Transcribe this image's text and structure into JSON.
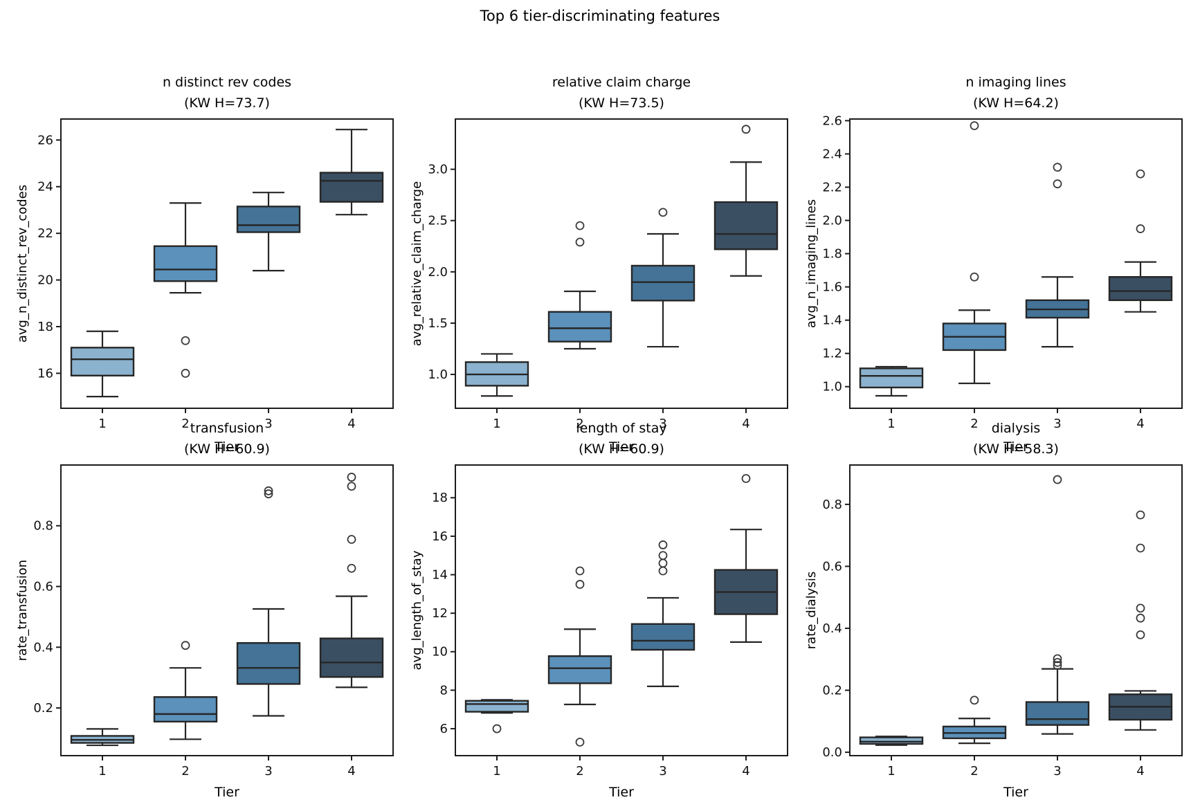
{
  "suptitle": "Top 6 tier-discriminating features",
  "palette": {
    "tiers": [
      "#8bb2ce",
      "#5b91bb",
      "#447397",
      "#3b4f63"
    ],
    "line": "#262626",
    "axis": "#1c1c1c",
    "flier": "#3a3a3a",
    "background": "#ffffff"
  },
  "chart_data": [
    {
      "type": "box",
      "title": "n distinct rev codes",
      "kw_label": "(KW H=73.7)",
      "xlabel": "Tier",
      "ylabel": "avg_n_distinct_rev_codes",
      "categories": [
        "1",
        "2",
        "3",
        "4"
      ],
      "ylim": [
        14.5,
        26.9
      ],
      "yticks": [
        {
          "v": 16,
          "label": "16"
        },
        {
          "v": 18,
          "label": "18"
        },
        {
          "v": 20,
          "label": "20"
        },
        {
          "v": 22,
          "label": "22"
        },
        {
          "v": 24,
          "label": "24"
        },
        {
          "v": 26,
          "label": "26"
        }
      ],
      "boxes": [
        {
          "tier": "1",
          "whislo": 15.0,
          "q1": 15.9,
          "med": 16.6,
          "q3": 17.1,
          "whishi": 17.8,
          "fliers": []
        },
        {
          "tier": "2",
          "whislo": 19.45,
          "q1": 19.95,
          "med": 20.45,
          "q3": 21.45,
          "whishi": 23.3,
          "fliers": [
            17.4,
            16.0
          ]
        },
        {
          "tier": "3",
          "whislo": 20.4,
          "q1": 22.05,
          "med": 22.35,
          "q3": 23.15,
          "whishi": 23.75,
          "fliers": []
        },
        {
          "tier": "4",
          "whislo": 22.8,
          "q1": 23.35,
          "med": 24.25,
          "q3": 24.6,
          "whishi": 26.45,
          "fliers": []
        }
      ]
    },
    {
      "type": "box",
      "title": "relative claim charge",
      "kw_label": "(KW H=73.5)",
      "xlabel": "Tier",
      "ylabel": "avg_relative_claim_charge",
      "categories": [
        "1",
        "2",
        "3",
        "4"
      ],
      "ylim": [
        0.67,
        3.49
      ],
      "yticks": [
        {
          "v": 1.0,
          "label": "1.0"
        },
        {
          "v": 1.5,
          "label": "1.5"
        },
        {
          "v": 2.0,
          "label": "2.0"
        },
        {
          "v": 2.5,
          "label": "2.5"
        },
        {
          "v": 3.0,
          "label": "3.0"
        }
      ],
      "boxes": [
        {
          "tier": "1",
          "whislo": 0.79,
          "q1": 0.89,
          "med": 1.0,
          "q3": 1.12,
          "whishi": 1.2,
          "fliers": []
        },
        {
          "tier": "2",
          "whislo": 1.25,
          "q1": 1.32,
          "med": 1.45,
          "q3": 1.61,
          "whishi": 1.81,
          "fliers": [
            2.29,
            2.45
          ]
        },
        {
          "tier": "3",
          "whislo": 1.27,
          "q1": 1.72,
          "med": 1.9,
          "q3": 2.06,
          "whishi": 2.37,
          "fliers": [
            2.58
          ]
        },
        {
          "tier": "4",
          "whislo": 1.96,
          "q1": 2.22,
          "med": 2.37,
          "q3": 2.68,
          "whishi": 3.07,
          "fliers": [
            3.39
          ]
        }
      ]
    },
    {
      "type": "box",
      "title": "n imaging lines",
      "kw_label": "(KW H=64.2)",
      "xlabel": "Tier",
      "ylabel": "avg_n_imaging_lines",
      "categories": [
        "1",
        "2",
        "3",
        "4"
      ],
      "ylim": [
        0.87,
        2.61
      ],
      "yticks": [
        {
          "v": 1.0,
          "label": "1.0"
        },
        {
          "v": 1.2,
          "label": "1.2"
        },
        {
          "v": 1.4,
          "label": "1.4"
        },
        {
          "v": 1.6,
          "label": "1.6"
        },
        {
          "v": 1.8,
          "label": "1.8"
        },
        {
          "v": 2.0,
          "label": "2.0"
        },
        {
          "v": 2.2,
          "label": "2.2"
        },
        {
          "v": 2.4,
          "label": "2.4"
        },
        {
          "v": 2.6,
          "label": "2.6"
        }
      ],
      "boxes": [
        {
          "tier": "1",
          "whislo": 0.945,
          "q1": 0.995,
          "med": 1.065,
          "q3": 1.11,
          "whishi": 1.12,
          "fliers": []
        },
        {
          "tier": "2",
          "whislo": 1.02,
          "q1": 1.22,
          "med": 1.3,
          "q3": 1.38,
          "whishi": 1.46,
          "fliers": [
            1.66,
            2.57
          ]
        },
        {
          "tier": "3",
          "whislo": 1.24,
          "q1": 1.415,
          "med": 1.465,
          "q3": 1.52,
          "whishi": 1.66,
          "fliers": [
            2.22,
            2.32
          ]
        },
        {
          "tier": "4",
          "whislo": 1.45,
          "q1": 1.52,
          "med": 1.575,
          "q3": 1.66,
          "whishi": 1.75,
          "fliers": [
            1.95,
            2.28
          ]
        }
      ]
    },
    {
      "type": "box",
      "title": "transfusion",
      "kw_label": "(KW H=60.9)",
      "xlabel": "Tier",
      "ylabel": "rate_transfusion",
      "categories": [
        "1",
        "2",
        "3",
        "4"
      ],
      "ylim": [
        0.043,
        1.0
      ],
      "yticks": [
        {
          "v": 0.2,
          "label": "0.2"
        },
        {
          "v": 0.4,
          "label": "0.4"
        },
        {
          "v": 0.6,
          "label": "0.6"
        },
        {
          "v": 0.8,
          "label": "0.8"
        }
      ],
      "boxes": [
        {
          "tier": "1",
          "whislo": 0.077,
          "q1": 0.085,
          "med": 0.095,
          "q3": 0.108,
          "whishi": 0.131,
          "fliers": []
        },
        {
          "tier": "2",
          "whislo": 0.097,
          "q1": 0.155,
          "med": 0.18,
          "q3": 0.236,
          "whishi": 0.332,
          "fliers": [
            0.406
          ]
        },
        {
          "tier": "3",
          "whislo": 0.174,
          "q1": 0.279,
          "med": 0.332,
          "q3": 0.414,
          "whishi": 0.526,
          "fliers": [
            0.905,
            0.915
          ]
        },
        {
          "tier": "4",
          "whislo": 0.268,
          "q1": 0.302,
          "med": 0.35,
          "q3": 0.429,
          "whishi": 0.568,
          "fliers": [
            0.66,
            0.755,
            0.93,
            0.96
          ]
        }
      ]
    },
    {
      "type": "box",
      "title": "length of stay",
      "kw_label": "(KW H=60.9)",
      "xlabel": "Tier",
      "ylabel": "avg_length_of_stay",
      "categories": [
        "1",
        "2",
        "3",
        "4"
      ],
      "ylim": [
        4.6,
        19.7
      ],
      "yticks": [
        {
          "v": 6,
          "label": "6"
        },
        {
          "v": 8,
          "label": "8"
        },
        {
          "v": 10,
          "label": "10"
        },
        {
          "v": 12,
          "label": "12"
        },
        {
          "v": 14,
          "label": "14"
        },
        {
          "v": 16,
          "label": "16"
        },
        {
          "v": 18,
          "label": "18"
        }
      ],
      "boxes": [
        {
          "tier": "1",
          "whislo": 6.82,
          "q1": 6.88,
          "med": 7.28,
          "q3": 7.45,
          "whishi": 7.5,
          "fliers": [
            6.0
          ]
        },
        {
          "tier": "2",
          "whislo": 7.26,
          "q1": 8.36,
          "med": 9.14,
          "q3": 9.77,
          "whishi": 11.17,
          "fliers": [
            5.3,
            13.5,
            14.2
          ]
        },
        {
          "tier": "3",
          "whislo": 8.2,
          "q1": 10.1,
          "med": 10.57,
          "q3": 11.44,
          "whishi": 12.8,
          "fliers": [
            14.2,
            14.6,
            15.0,
            15.55
          ]
        },
        {
          "tier": "4",
          "whislo": 10.5,
          "q1": 11.95,
          "med": 13.1,
          "q3": 14.25,
          "whishi": 16.35,
          "fliers": [
            19.0
          ]
        }
      ]
    },
    {
      "type": "box",
      "title": "dialysis",
      "kw_label": "(KW H=58.3)",
      "xlabel": "Tier",
      "ylabel": "rate_dialysis",
      "categories": [
        "1",
        "2",
        "3",
        "4"
      ],
      "ylim": [
        -0.011,
        0.927
      ],
      "yticks": [
        {
          "v": 0.0,
          "label": "0.0"
        },
        {
          "v": 0.2,
          "label": "0.2"
        },
        {
          "v": 0.4,
          "label": "0.4"
        },
        {
          "v": 0.6,
          "label": "0.6"
        },
        {
          "v": 0.8,
          "label": "0.8"
        }
      ],
      "boxes": [
        {
          "tier": "1",
          "whislo": 0.023,
          "q1": 0.027,
          "med": 0.034,
          "q3": 0.048,
          "whishi": 0.051,
          "fliers": []
        },
        {
          "tier": "2",
          "whislo": 0.029,
          "q1": 0.045,
          "med": 0.062,
          "q3": 0.083,
          "whishi": 0.109,
          "fliers": [
            0.168
          ]
        },
        {
          "tier": "3",
          "whislo": 0.059,
          "q1": 0.088,
          "med": 0.107,
          "q3": 0.162,
          "whishi": 0.269,
          "fliers": [
            0.28,
            0.29,
            0.302,
            0.88
          ]
        },
        {
          "tier": "4",
          "whislo": 0.072,
          "q1": 0.105,
          "med": 0.147,
          "q3": 0.187,
          "whishi": 0.198,
          "fliers": [
            0.379,
            0.433,
            0.465,
            0.659,
            0.766
          ]
        }
      ]
    }
  ]
}
